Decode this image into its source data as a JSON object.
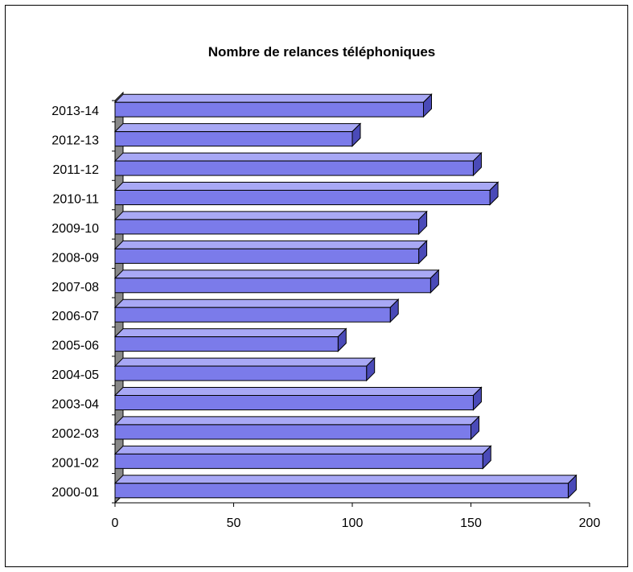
{
  "chart_data": {
    "type": "bar",
    "orientation": "horizontal",
    "style": "3d",
    "title": "Nombre de relances téléphoniques",
    "xlabel": "",
    "ylabel": "",
    "categories": [
      "2000-01",
      "2001-02",
      "2002-03",
      "2003-04",
      "2004-05",
      "2005-06",
      "2006-07",
      "2007-08",
      "2008-09",
      "2009-10",
      "2010-11",
      "2011-12",
      "2012-13",
      "2013-14"
    ],
    "values": [
      191,
      155,
      150,
      151,
      106,
      94,
      116,
      133,
      128,
      128,
      158,
      151,
      100,
      130
    ],
    "xlim": [
      0,
      200
    ],
    "xticks": [
      0,
      50,
      100,
      150,
      200
    ],
    "grid": false,
    "legend": "none",
    "colors": {
      "bar_front": "#7b7bea",
      "bar_top": "#a8a8f5",
      "bar_side": "#4a4ab8",
      "wall": "#888888",
      "outline": "#000000"
    }
  }
}
